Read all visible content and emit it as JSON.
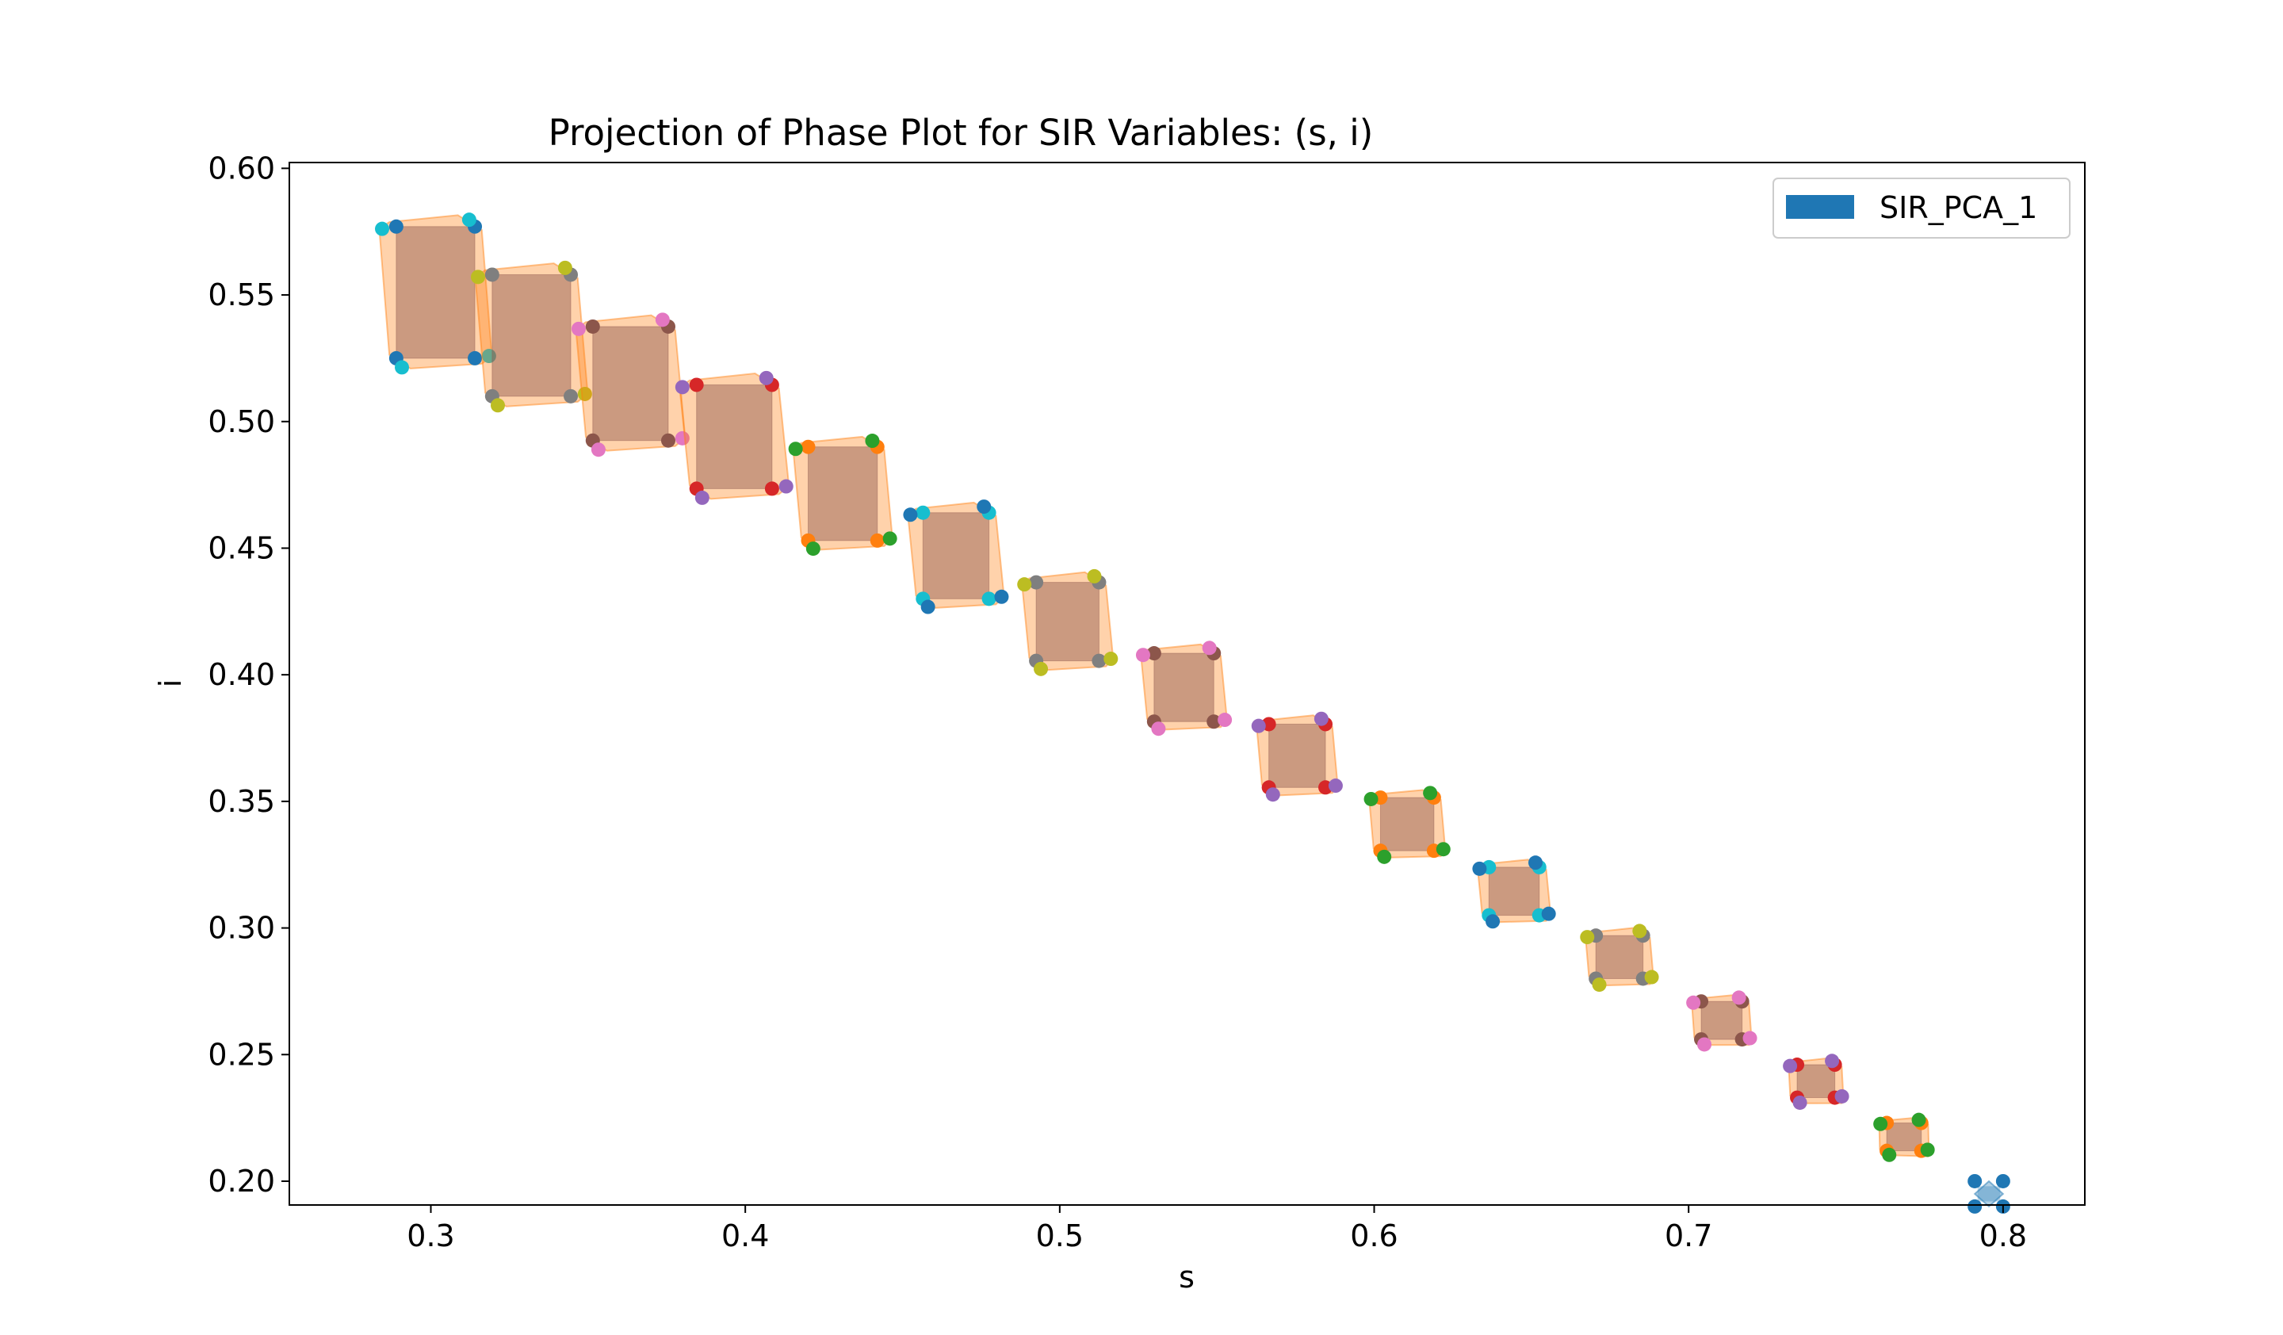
{
  "chart_data": {
    "type": "scatter",
    "title": "Projection of Phase Plot for SIR Variables: (s, i)",
    "xlabel": "s",
    "ylabel": "i",
    "xlim": [
      0.255,
      0.826
    ],
    "ylim": [
      0.1906,
      0.6023
    ],
    "xticks": [
      0.3,
      0.4,
      0.5,
      0.6,
      0.7,
      0.8
    ],
    "yticks": [
      0.2,
      0.25,
      0.3,
      0.35,
      0.4,
      0.45,
      0.5,
      0.55,
      0.6
    ],
    "xtick_labels": [
      "0.3",
      "0.4",
      "0.5",
      "0.6",
      "0.7",
      "0.8"
    ],
    "ytick_labels": [
      "0.20",
      "0.25",
      "0.30",
      "0.35",
      "0.40",
      "0.45",
      "0.50",
      "0.55",
      "0.60"
    ],
    "grid": false,
    "legend": {
      "position": "top-right",
      "entries": [
        {
          "name": "SIR_PCA_1",
          "color": "#1f77b4"
        }
      ]
    },
    "colors": {
      "hull_fill": "#ff7f0e",
      "box_fill": "#8c564b",
      "last_box_fill": "#1f77b4",
      "palette": [
        "#1f77b4",
        "#ff7f0e",
        "#2ca02c",
        "#d62728",
        "#9467bd",
        "#8c564b",
        "#e377c2",
        "#7f7f7f",
        "#bcbd22",
        "#17becf"
      ]
    },
    "boxes": [
      {
        "center": [
          0.3015,
          0.551
        ],
        "half": [
          0.0125,
          0.026
        ],
        "shift": [
          0.009,
          0.0045
        ],
        "color": "#1f77b4",
        "color2": "#17becf"
      },
      {
        "center": [
          0.332,
          0.534
        ],
        "half": [
          0.0125,
          0.024
        ],
        "shift": [
          0.009,
          0.0045
        ],
        "color": "#7f7f7f",
        "color2": "#bcbd22"
      },
      {
        "center": [
          0.3635,
          0.515
        ],
        "half": [
          0.012,
          0.0225
        ],
        "shift": [
          0.009,
          0.0045
        ],
        "color": "#8c564b",
        "color2": "#e377c2"
      },
      {
        "center": [
          0.3965,
          0.494
        ],
        "half": [
          0.012,
          0.0205
        ],
        "shift": [
          0.009,
          0.0045
        ],
        "color": "#d62728",
        "color2": "#9467bd"
      },
      {
        "center": [
          0.431,
          0.4715
        ],
        "half": [
          0.011,
          0.0185
        ],
        "shift": [
          0.008,
          0.004
        ],
        "color": "#ff7f0e",
        "color2": "#2ca02c"
      },
      {
        "center": [
          0.467,
          0.447
        ],
        "half": [
          0.0105,
          0.017
        ],
        "shift": [
          0.008,
          0.004
        ],
        "color": "#17becf",
        "color2": "#1f77b4"
      },
      {
        "center": [
          0.5025,
          0.421
        ],
        "half": [
          0.01,
          0.0155
        ],
        "shift": [
          0.0075,
          0.004
        ],
        "color": "#7f7f7f",
        "color2": "#bcbd22"
      },
      {
        "center": [
          0.5395,
          0.395
        ],
        "half": [
          0.0095,
          0.0135
        ],
        "shift": [
          0.007,
          0.0035
        ],
        "color": "#8c564b",
        "color2": "#e377c2"
      },
      {
        "center": [
          0.5755,
          0.368
        ],
        "half": [
          0.009,
          0.0125
        ],
        "shift": [
          0.0065,
          0.0035
        ],
        "color": "#d62728",
        "color2": "#9467bd"
      },
      {
        "center": [
          0.6105,
          0.341
        ],
        "half": [
          0.0085,
          0.0105
        ],
        "shift": [
          0.006,
          0.003
        ],
        "color": "#ff7f0e",
        "color2": "#2ca02c"
      },
      {
        "center": [
          0.6445,
          0.3145
        ],
        "half": [
          0.008,
          0.0095
        ],
        "shift": [
          0.006,
          0.003
        ],
        "color": "#17becf",
        "color2": "#1f77b4"
      },
      {
        "center": [
          0.678,
          0.2885
        ],
        "half": [
          0.0075,
          0.0085
        ],
        "shift": [
          0.0055,
          0.003
        ],
        "color": "#7f7f7f",
        "color2": "#bcbd22"
      },
      {
        "center": [
          0.7105,
          0.2635
        ],
        "half": [
          0.0065,
          0.0075
        ],
        "shift": [
          0.005,
          0.0025
        ],
        "color": "#8c564b",
        "color2": "#e377c2"
      },
      {
        "center": [
          0.7405,
          0.2395
        ],
        "half": [
          0.006,
          0.0065
        ],
        "shift": [
          0.0045,
          0.0025
        ],
        "color": "#d62728",
        "color2": "#9467bd"
      },
      {
        "center": [
          0.7685,
          0.2175
        ],
        "half": [
          0.0055,
          0.0055
        ],
        "shift": [
          0.004,
          0.002
        ],
        "color": "#ff7f0e",
        "color2": "#2ca02c"
      },
      {
        "center": [
          0.7955,
          0.195
        ],
        "half": [
          0.0045,
          0.005
        ],
        "shift": [
          0.0,
          0.0
        ],
        "color": "#1f77b4",
        "color2": "#1f77b4",
        "last": true
      }
    ]
  }
}
